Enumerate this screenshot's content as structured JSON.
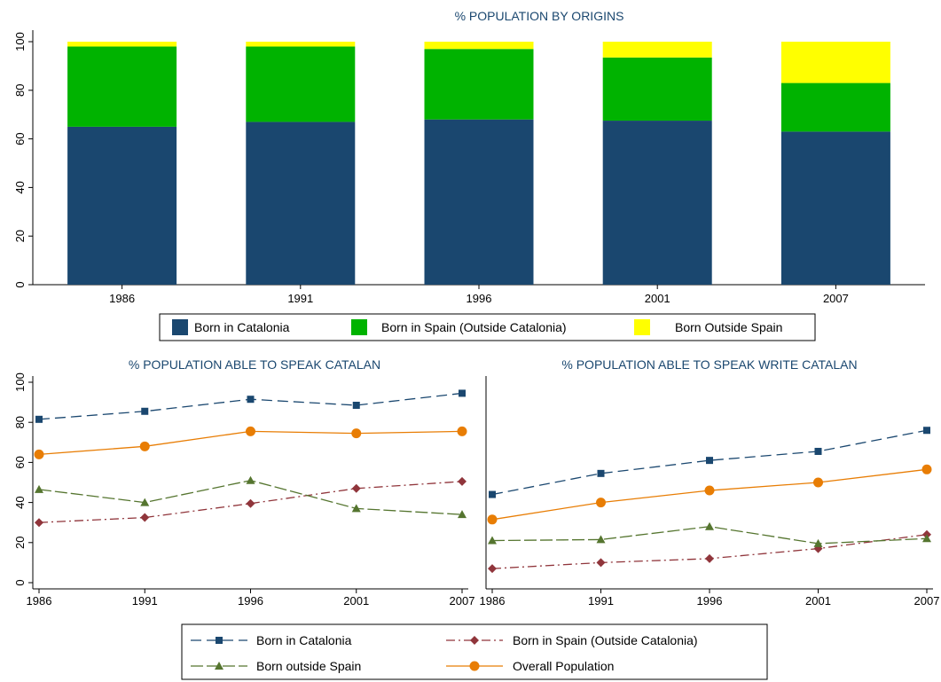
{
  "colors": {
    "catalonia": "#1a476f",
    "spain": "#00b300",
    "outside": "#ffff00",
    "outside_line": "#55752f",
    "spain_line": "#90353b",
    "overall": "#e87d04",
    "title": "#1a476f"
  },
  "chart_data": [
    {
      "type": "bar",
      "stacked": true,
      "title": "% POPULATION BY ORIGINS",
      "categories": [
        "1986",
        "1991",
        "1996",
        "2001",
        "2007"
      ],
      "ylim": [
        0,
        100
      ],
      "yticks": [
        "0",
        "20",
        "40",
        "60",
        "80",
        "100"
      ],
      "series": [
        {
          "name": "Born in Catalonia",
          "values": [
            65,
            67,
            68,
            67.5,
            63
          ]
        },
        {
          "name": "Born in Spain (Outside Catalonia)",
          "values": [
            33,
            31,
            29,
            26,
            20
          ]
        },
        {
          "name": "Born Outside Spain",
          "values": [
            2,
            2,
            3,
            6.5,
            17
          ]
        }
      ],
      "legend": "bottom"
    },
    {
      "type": "line",
      "title": "% POPULATION ABLE TO SPEAK CATALAN",
      "x": [
        "1986",
        "1991",
        "1996",
        "2001",
        "2007"
      ],
      "ylim": [
        0,
        100
      ],
      "yticks": [
        "0",
        "20",
        "40",
        "60",
        "80",
        "100"
      ],
      "series": [
        {
          "name": "Born in Catalonia",
          "values": [
            81.5,
            85.5,
            91.5,
            88.5,
            94.5
          ]
        },
        {
          "name": "Born in Spain (Outside Catalonia)",
          "values": [
            30,
            32.5,
            39.5,
            47,
            50.5
          ]
        },
        {
          "name": "Born outside Spain",
          "values": [
            46.5,
            40,
            51,
            37,
            34
          ]
        },
        {
          "name": "Overall Population",
          "values": [
            64,
            68,
            75.5,
            74.5,
            75.5
          ]
        }
      ]
    },
    {
      "type": "line",
      "title": "% POPULATION ABLE TO SPEAK WRITE CATALAN",
      "x": [
        "1986",
        "1991",
        "1996",
        "2001",
        "2007"
      ],
      "ylim": [
        0,
        100
      ],
      "series": [
        {
          "name": "Born in Catalonia",
          "values": [
            44,
            54.5,
            61,
            65.5,
            76
          ]
        },
        {
          "name": "Born in Spain (Outside Catalonia)",
          "values": [
            7,
            10,
            12,
            17,
            24
          ]
        },
        {
          "name": "Born outside Spain",
          "values": [
            21,
            21.5,
            28,
            19.5,
            22
          ]
        },
        {
          "name": "Overall Population",
          "values": [
            31.5,
            40,
            46,
            50,
            56.5
          ]
        }
      ],
      "legend": "bottom"
    }
  ]
}
